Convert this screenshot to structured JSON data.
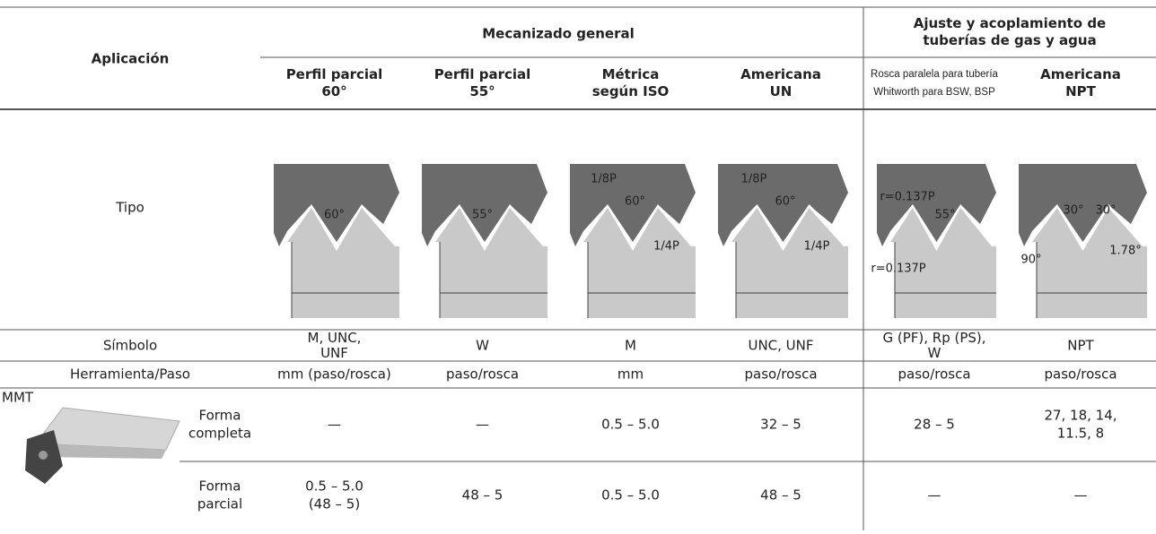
{
  "header": {
    "application": "Aplicación",
    "general": "Mecanizado general",
    "pipe": [
      "Ajuste y acoplamiento de",
      "tuberías de gas y agua"
    ]
  },
  "columns": [
    [
      "Perfil parcial",
      "60°"
    ],
    [
      "Perfil parcial",
      "55°"
    ],
    [
      "Métrica",
      "según ISO"
    ],
    [
      "Americana",
      "UN"
    ],
    [
      "Rosca paralela para tubería",
      "Whitworth para BSW, BSP"
    ],
    [
      "Americana",
      "NPT"
    ]
  ],
  "type_row": {
    "label": "Tipo",
    "diagram_labels": [
      [
        "60°"
      ],
      [
        "55°"
      ],
      [
        "1/8P",
        "60°",
        "1/4P"
      ],
      [
        "1/8P",
        "60°",
        "1/4P"
      ],
      [
        "r=0.137P",
        "55°",
        "r=0.137P"
      ],
      [
        "30°",
        "30°",
        "90°",
        "1.78°"
      ]
    ]
  },
  "symbol_row": {
    "label": "Símbolo",
    "values": [
      [
        "M, UNC,",
        "UNF"
      ],
      [
        "W"
      ],
      [
        "M"
      ],
      [
        "UNC, UNF"
      ],
      [
        "G (PF), Rp (PS),",
        "W"
      ],
      [
        "NPT"
      ]
    ]
  },
  "tool_row": {
    "label": "Herramienta/Paso",
    "values": [
      "mm (paso/rosca)",
      "paso/rosca",
      "mm",
      "paso/rosca",
      "paso/rosca",
      "paso/rosca"
    ]
  },
  "tool": {
    "name": "MMT",
    "rows": [
      {
        "label": [
          "Forma",
          "completa"
        ],
        "values": [
          [
            "—"
          ],
          [
            "—"
          ],
          [
            "0.5 – 5.0"
          ],
          [
            "32 – 5"
          ],
          [
            "28 – 5"
          ],
          [
            "27, 18, 14,",
            "11.5, 8"
          ]
        ]
      },
      {
        "label": [
          "Forma",
          "parcial"
        ],
        "values": [
          [
            "0.5 – 5.0",
            "(48 – 5)"
          ],
          [
            "48 – 5"
          ],
          [
            "0.5 – 5.0"
          ],
          [
            "48 – 5"
          ],
          [
            "—"
          ],
          [
            "—"
          ]
        ]
      }
    ]
  }
}
